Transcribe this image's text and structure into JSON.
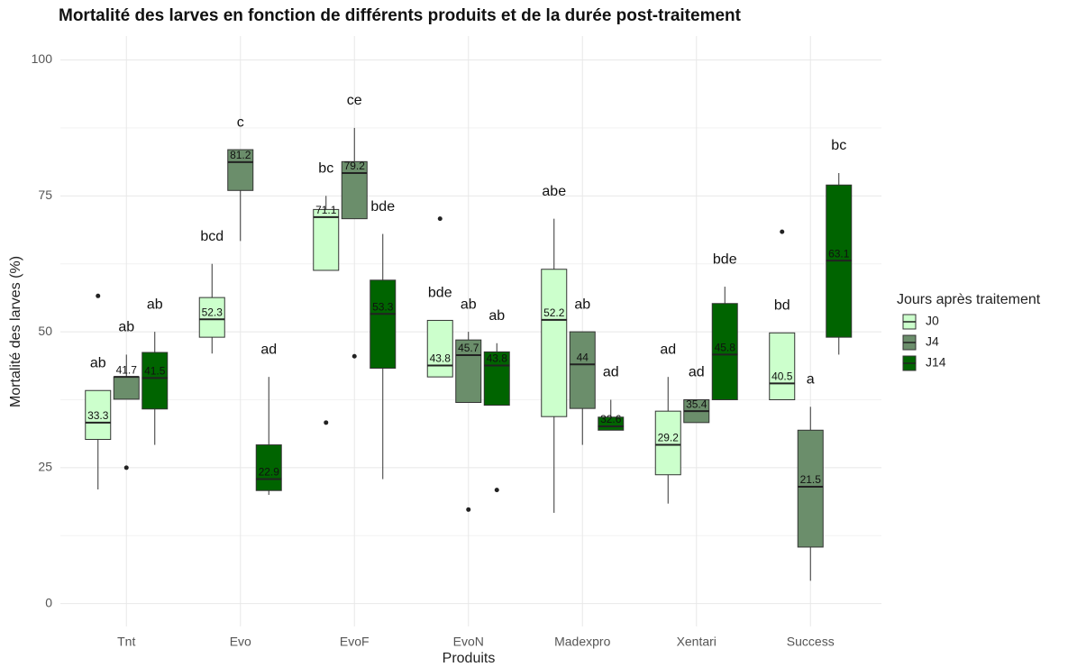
{
  "chart_data": {
    "type": "boxplot",
    "title": "Mortalité des larves en fonction de différents produits et de la durée post-traitement",
    "xlabel": "Produits",
    "ylabel": "Mortalité des larves (%)",
    "legend_title": "Jours après traitement",
    "categories": [
      "Tnt",
      "Evo",
      "EvoF",
      "EvoN",
      "Madexpro",
      "Xentari",
      "Success"
    ],
    "ylim": [
      -4.2,
      104.4
    ],
    "yticks": [
      0,
      25,
      50,
      75,
      100
    ],
    "grid": true,
    "series": [
      {
        "name": "J0",
        "color": "#ccffcc",
        "boxes": [
          {
            "min": 21,
            "q1": 30.2,
            "median": 33.3,
            "q3": 39.2,
            "max": 39.2,
            "outliers": [
              56.6
            ]
          },
          {
            "min": 46,
            "q1": 49,
            "median": 52.3,
            "q3": 56.3,
            "max": 62.5,
            "outliers": []
          },
          {
            "min": 61.3,
            "q1": 61.3,
            "median": 71.1,
            "q3": 72.5,
            "max": 75,
            "outliers": [
              33.3
            ]
          },
          {
            "min": 41.7,
            "q1": 41.7,
            "median": 43.8,
            "q3": 52.1,
            "max": 52.1,
            "outliers": [
              70.8
            ]
          },
          {
            "min": 16.7,
            "q1": 34.4,
            "median": 52.2,
            "q3": 61.5,
            "max": 70.8,
            "outliers": []
          },
          {
            "min": 18.4,
            "q1": 23.7,
            "median": 29.2,
            "q3": 35.4,
            "max": 41.7,
            "outliers": []
          },
          {
            "min": 37.5,
            "q1": 37.5,
            "median": 40.5,
            "q3": 49.8,
            "max": 49.8,
            "outliers": [
              68.4
            ]
          }
        ],
        "letters": [
          "ab",
          "bcd",
          "bc",
          "bde",
          "abe",
          "ad",
          "bd"
        ]
      },
      {
        "name": "J4",
        "color": "#6b8e6b",
        "boxes": [
          {
            "min": 37.6,
            "q1": 37.6,
            "median": 41.7,
            "q3": 41.7,
            "max": 45.8,
            "outliers": [
              25
            ]
          },
          {
            "min": 66.7,
            "q1": 76,
            "median": 81.2,
            "q3": 83.5,
            "max": 83.5,
            "outliers": []
          },
          {
            "min": 70.8,
            "q1": 70.8,
            "median": 79.2,
            "q3": 81.3,
            "max": 87.5,
            "outliers": [
              45.5
            ]
          },
          {
            "min": 37,
            "q1": 37,
            "median": 45.7,
            "q3": 48.5,
            "max": 50,
            "outliers": [
              17.3
            ]
          },
          {
            "min": 29.2,
            "q1": 35.9,
            "median": 44,
            "q3": 50,
            "max": 50,
            "outliers": []
          },
          {
            "min": 33.3,
            "q1": 33.3,
            "median": 35.4,
            "q3": 37.5,
            "max": 37.5,
            "outliers": []
          },
          {
            "min": 4.2,
            "q1": 10.4,
            "median": 21.5,
            "q3": 31.9,
            "max": 36.2,
            "outliers": []
          }
        ],
        "letters": [
          "ab",
          "c",
          "ce",
          "ab",
          "ab",
          "ad",
          "a"
        ]
      },
      {
        "name": "J14",
        "color": "#006400",
        "boxes": [
          {
            "min": 29.2,
            "q1": 35.8,
            "median": 41.5,
            "q3": 46.2,
            "max": 50,
            "outliers": []
          },
          {
            "min": 20,
            "q1": 20.8,
            "median": 22.9,
            "q3": 29.2,
            "max": 41.7,
            "outliers": []
          },
          {
            "min": 22.9,
            "q1": 43.3,
            "median": 53.3,
            "q3": 59.5,
            "max": 68,
            "outliers": []
          },
          {
            "min": 36.5,
            "q1": 36.5,
            "median": 43.8,
            "q3": 46.3,
            "max": 47.9,
            "outliers": [
              20.9
            ]
          },
          {
            "min": 31.9,
            "q1": 31.9,
            "median": 32.6,
            "q3": 34.3,
            "max": 37.5,
            "outliers": []
          },
          {
            "min": 37.5,
            "q1": 37.5,
            "median": 45.8,
            "q3": 55.2,
            "max": 58.3,
            "outliers": []
          },
          {
            "min": 45.8,
            "q1": 49,
            "median": 63.1,
            "q3": 77,
            "max": 79.2,
            "outliers": []
          }
        ],
        "letters": [
          "ab",
          "ad",
          "bde",
          "ab",
          "ad",
          "bde",
          "bc"
        ]
      }
    ]
  }
}
